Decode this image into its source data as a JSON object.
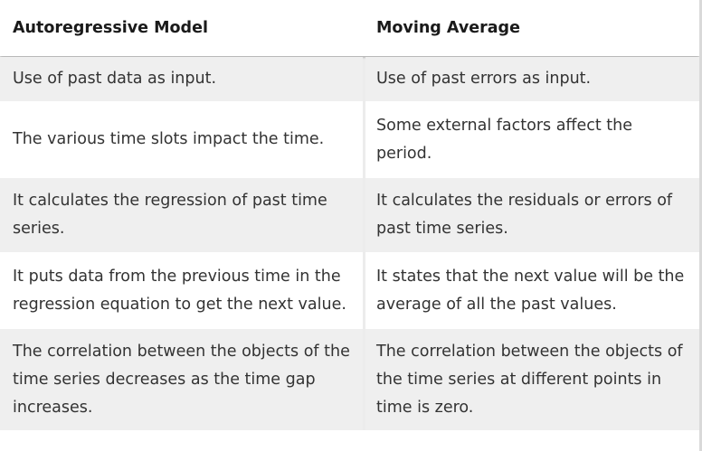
{
  "table": {
    "headers": [
      "Autoregressive Model",
      "Moving Average"
    ],
    "rows": [
      [
        "Use of past data as input.",
        "Use of past errors as input."
      ],
      [
        "The various time slots impact the time.",
        "Some external factors affect the period."
      ],
      [
        "It calculates the regression of past time series.",
        "It calculates the residuals or errors of past time series."
      ],
      [
        "It puts data from the previous time in the regression equation to get the next value.",
        "It states that the next value will be the average of all the past values."
      ],
      [
        "The correlation between the objects of the time series decreases as the time gap increases.",
        "The correlation between the objects of the time series at different points in time is zero."
      ]
    ]
  }
}
